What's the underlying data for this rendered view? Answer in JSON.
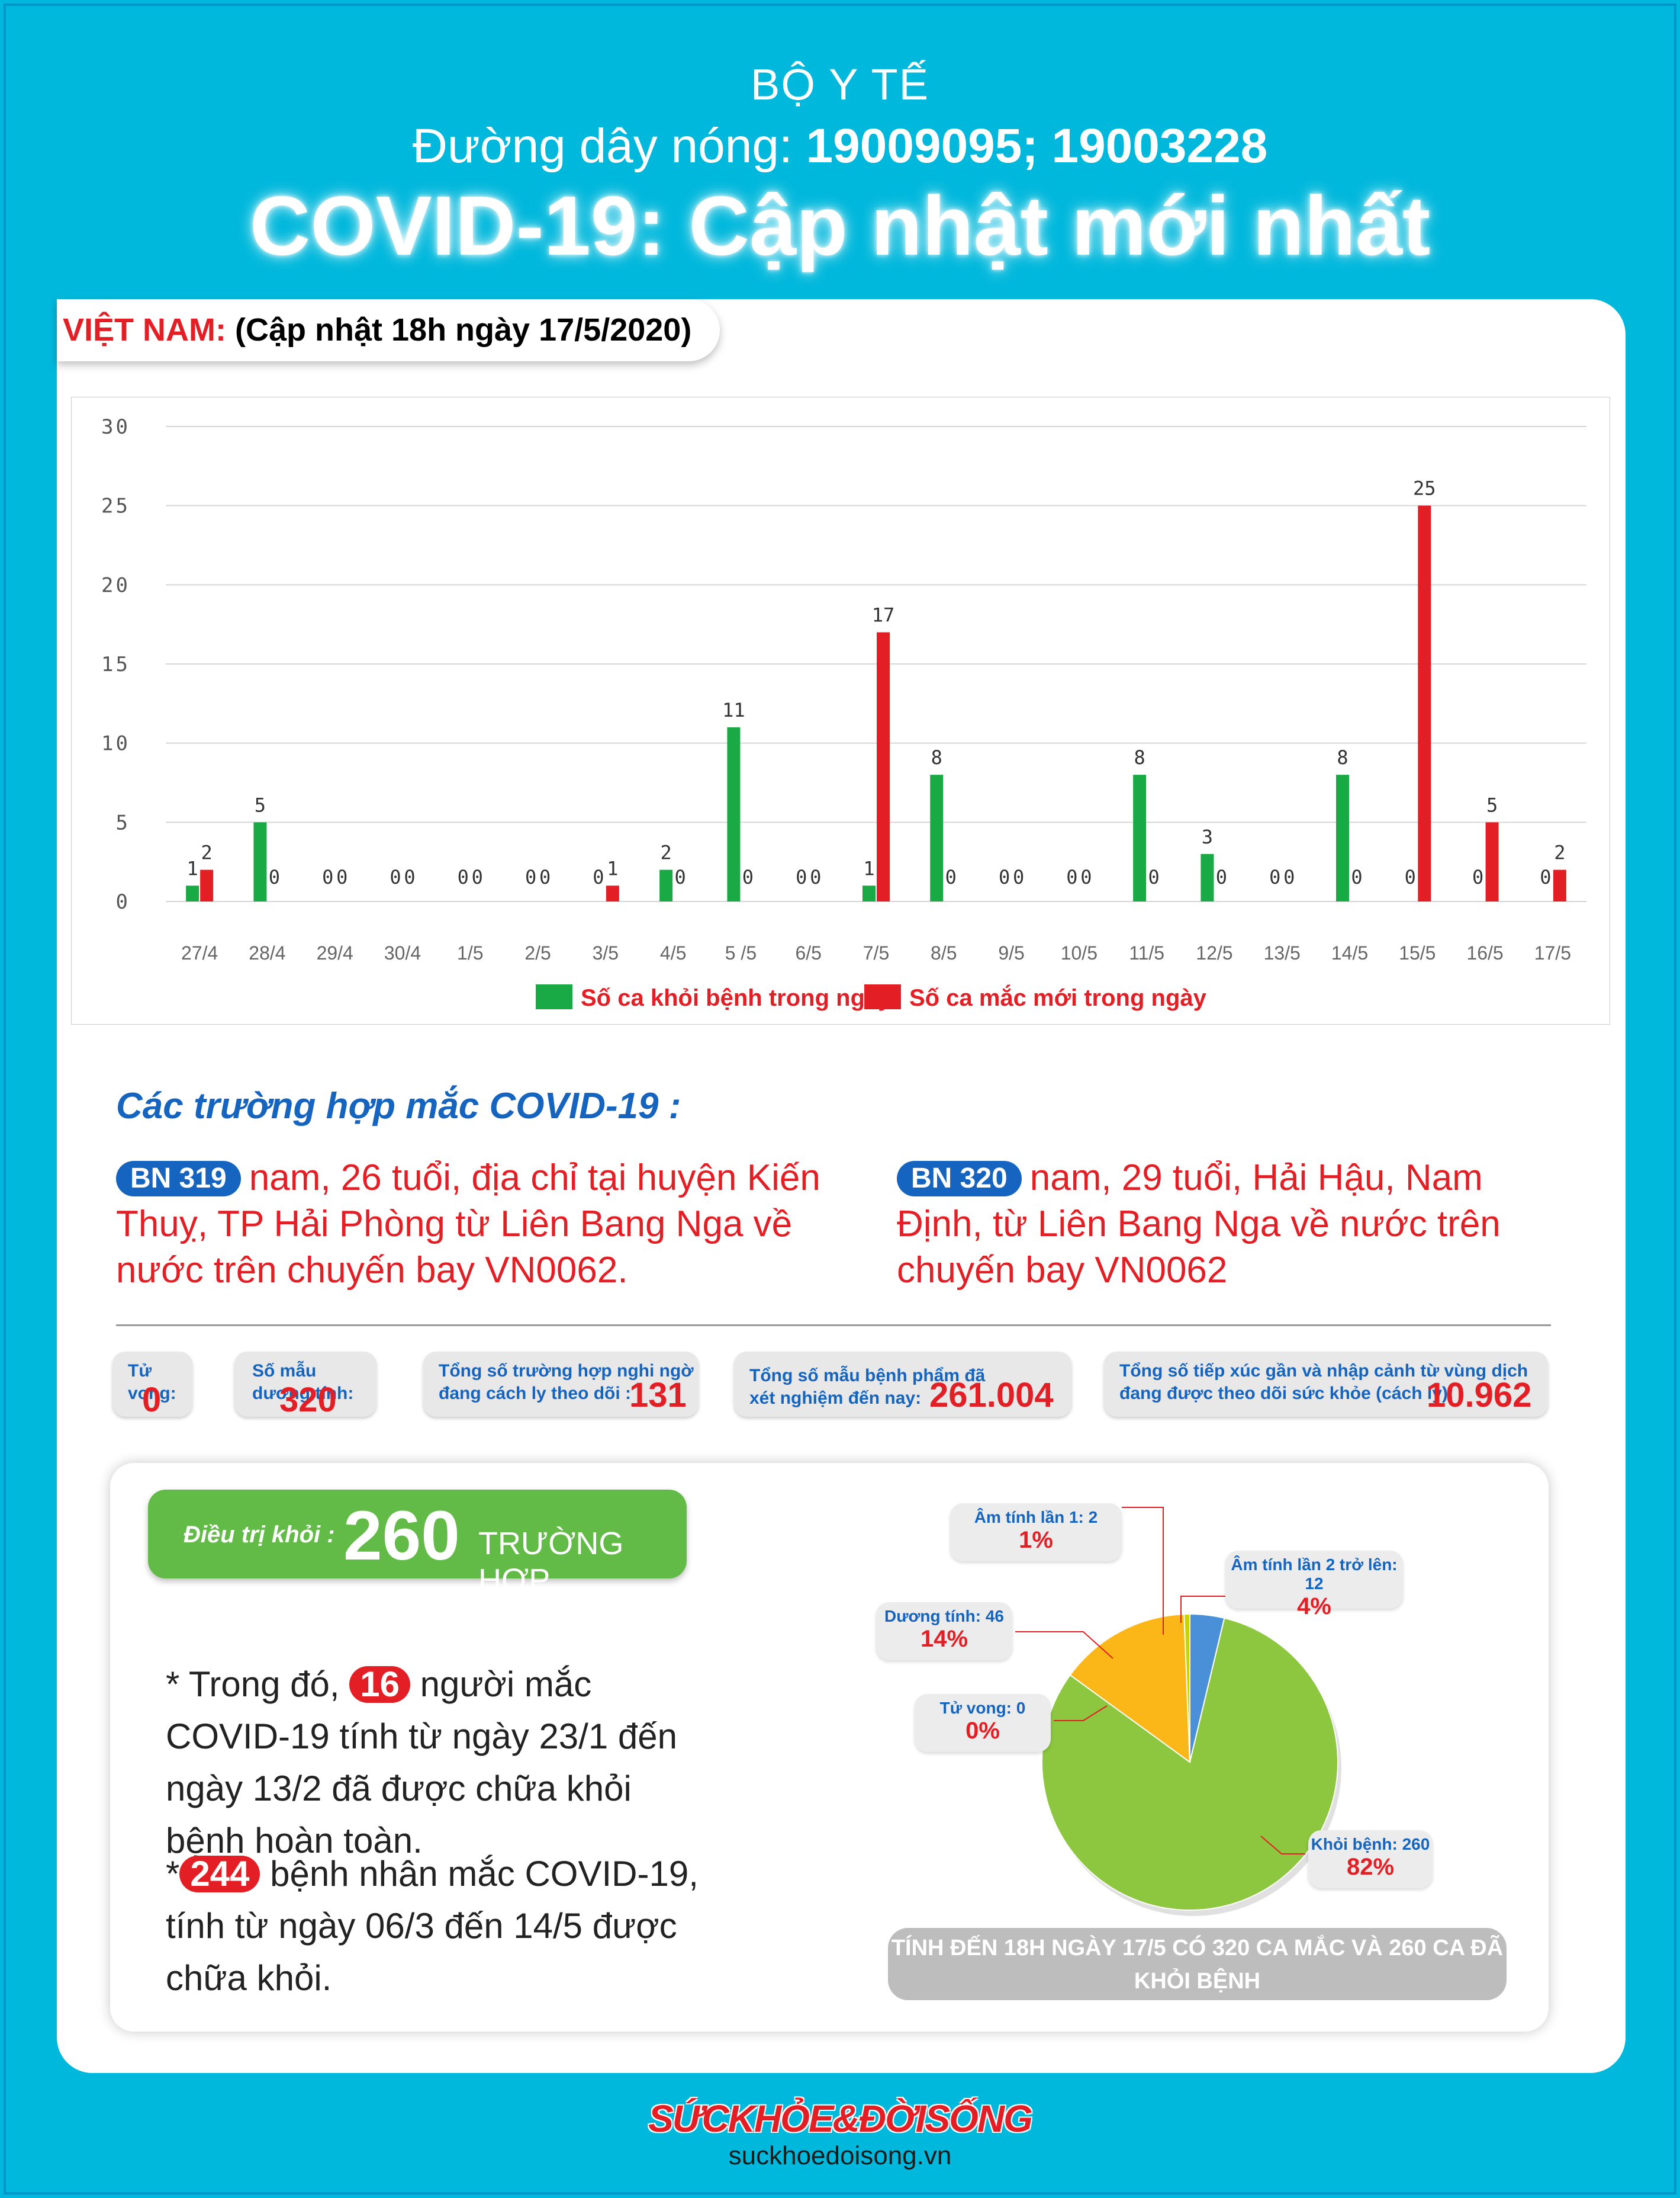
{
  "header": {
    "org": "BỘ Y TẾ",
    "hotline_label": "Đường dây nóng: ",
    "hotline_numbers": "19009095; 19003228",
    "title": "COVID-19: Cập nhật mới nhất"
  },
  "region": {
    "name": "VIỆT NAM:",
    "update": "(Cập nhật 18h ngày 17/5/2020)"
  },
  "colors": {
    "recovered": "#1aaa45",
    "new_cases": "#e31e24",
    "accent_blue": "#1565c0",
    "recover_green": "#62bb46"
  },
  "chart_data": {
    "type": "bar",
    "categories": [
      "27/4",
      "28/4",
      "29/4",
      "30/4",
      "1/5",
      "2/5",
      "3/5",
      "4/5",
      "5 /5",
      "6/5",
      "7/5",
      "8/5",
      "9/5",
      "10/5",
      "11/5",
      "12/5",
      "13/5",
      "14/5",
      "15/5",
      "16/5",
      "17/5"
    ],
    "series": [
      {
        "name": "Số ca khỏi bệnh trong ngày",
        "values": [
          1,
          5,
          0,
          0,
          0,
          0,
          0,
          2,
          11,
          0,
          1,
          8,
          0,
          0,
          8,
          3,
          0,
          8,
          0,
          0,
          0
        ]
      },
      {
        "name": "Số ca mắc mới  trong ngày",
        "values": [
          2,
          0,
          0,
          0,
          0,
          0,
          1,
          0,
          0,
          0,
          17,
          0,
          0,
          0,
          0,
          0,
          0,
          0,
          25,
          5,
          2
        ]
      }
    ],
    "ylim": [
      0,
      30
    ],
    "yticks": [
      "0",
      "5",
      "10",
      "15",
      "20",
      "25",
      "30"
    ],
    "grid": true,
    "legend": "bottom"
  },
  "cases_title": "Các trường hợp mắc COVID-19 :",
  "cases": [
    {
      "id": "BN 319",
      "text": "nam, 26 tuổi, địa chỉ tại huyện Kiến Thuỵ, TP Hải Phòng từ Liên Bang Nga về nước trên chuyến bay VN0062."
    },
    {
      "id": "BN 320",
      "text": "nam, 29 tuổi, Hải Hậu, Nam Định, từ Liên Bang Nga về nước trên chuyến bay VN0062"
    }
  ],
  "stats": {
    "deaths": {
      "label": "Tử vong:",
      "value": "0"
    },
    "positive": {
      "label": "Số mẫu dương tính:",
      "value": "320"
    },
    "suspected": {
      "label1": "Tổng số trường hợp nghi ngờ",
      "label2": "đang cách ly theo dõi :",
      "value": "131"
    },
    "tested": {
      "label1": "Tổng số mẫu bệnh phẩm đã",
      "label2": "xét nghiệm đến nay:",
      "value": "261.004"
    },
    "contacts": {
      "label1": "Tổng số tiếp xúc gần và nhập cảnh từ vùng dịch",
      "label2": "đang được theo dõi sức khỏe (cách ly):",
      "value": "10.962"
    }
  },
  "recovered": {
    "label": "Điều trị khỏi :",
    "value": "260",
    "unit": "TRƯỜNG HỢP"
  },
  "notes": {
    "n1_pre": "* Trong đó,",
    "n1_badge": "16",
    "n1_post": "người mắc COVID-19 tính từ ngày 23/1 đến ngày 13/2 đã được chữa khỏi bệnh hoàn toàn.",
    "n2_pre": "*",
    "n2_badge": "244",
    "n2_post": "bệnh nhân  mắc COVID-19, tính từ ngày 06/3 đến 14/5 được chữa khỏi."
  },
  "pie": {
    "slices": [
      {
        "label": "Khỏi bệnh: 260",
        "value": 260,
        "percent": "82%",
        "color": "#8dc63f"
      },
      {
        "label": "Dương tính: 46",
        "value": 46,
        "percent": "14%",
        "color": "#fbb717"
      },
      {
        "label": "Tử vong: 0",
        "value": 0,
        "percent": "0%",
        "color": "#e31e24"
      },
      {
        "label": "Âm tính lần 1: 2",
        "value": 2,
        "percent": "1%",
        "color": "#c8d400"
      },
      {
        "label": "Âm tính lần 2 trở lên: 12",
        "value": 12,
        "percent": "4%",
        "color": "#4a90d9"
      }
    ]
  },
  "summary": "TÍNH ĐẾN 18H NGÀY 17/5 CÓ 320 CA MẮC VÀ 260 CA ĐÃ KHỎI BỆNH",
  "footer": {
    "brand": "SỨCKHỎE&ĐỜISỐNG",
    "url": "suckhoedoisong.vn"
  }
}
